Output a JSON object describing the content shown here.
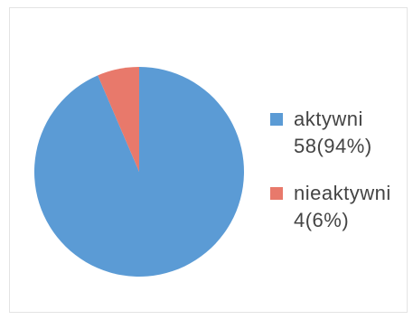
{
  "chart_data": {
    "type": "pie",
    "title": "",
    "slices": [
      {
        "label": "aktywni",
        "value": 58,
        "value_label": "58(94%)",
        "color": "#5b9bd5"
      },
      {
        "label": "nieaktywni",
        "value": 4,
        "value_label": "4(6%)",
        "color": "#e8796b"
      }
    ],
    "legend_position": "right"
  }
}
